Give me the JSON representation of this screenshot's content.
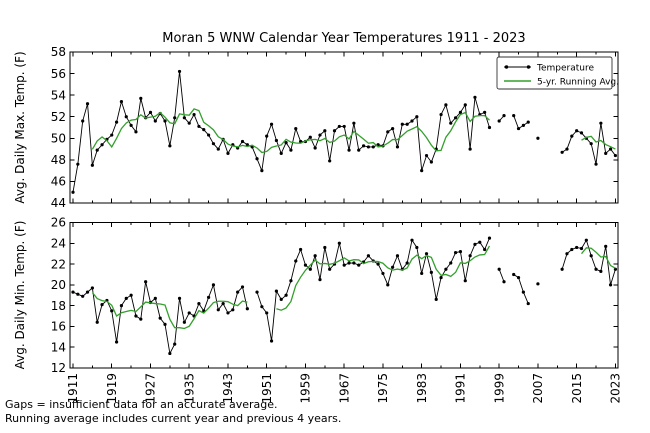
{
  "chart_data": {
    "type": "line",
    "title": "Moran 5 WNW Calendar Year Temperatures 1911 - 2023",
    "x": {
      "start_year": 1911,
      "end_year": 2023,
      "tick_step": 8,
      "minor_tick_step": 4,
      "tick_labels": [
        "1911",
        "1919",
        "1927",
        "1935",
        "1943",
        "1951",
        "1959",
        "1967",
        "1975",
        "1983",
        "1991",
        "1999",
        "2007",
        "2015",
        "2023"
      ]
    },
    "legend": [
      {
        "label": "Temperature",
        "color": "#000000",
        "marker": true
      },
      {
        "label": "5-yr. Running Avg.",
        "color": "#33a02c",
        "marker": false
      }
    ],
    "running_avg_window": 5,
    "grid": false,
    "legend_position": "upper right",
    "panels": [
      {
        "name": "max",
        "ylabel": "Avg. Daily Max. Temp. (F)",
        "ylim": [
          44,
          58
        ],
        "ytick_step": 2,
        "values": [
          45.0,
          47.6,
          51.6,
          53.2,
          47.5,
          48.9,
          49.4,
          49.9,
          50.3,
          51.5,
          53.4,
          52.0,
          51.2,
          50.6,
          53.7,
          51.9,
          52.4,
          51.6,
          52.3,
          51.6,
          49.3,
          51.9,
          56.2,
          51.9,
          51.4,
          52.2,
          51.1,
          50.8,
          50.3,
          49.5,
          49.0,
          49.9,
          48.6,
          49.4,
          49.1,
          49.7,
          49.4,
          49.2,
          48.1,
          47.0,
          50.2,
          51.3,
          49.8,
          48.6,
          49.6,
          48.9,
          50.9,
          49.7,
          49.7,
          50.1,
          49.1,
          50.3,
          50.7,
          47.9,
          50.7,
          51.1,
          51.1,
          48.9,
          51.4,
          48.9,
          49.3,
          49.2,
          49.2,
          49.4,
          49.3,
          50.6,
          50.9,
          49.2,
          51.3,
          51.3,
          51.6,
          52.0,
          47.0,
          48.4,
          47.8,
          49.0,
          52.2,
          53.1,
          51.4,
          51.9,
          52.4,
          53.1,
          49.0,
          53.8,
          52.2,
          52.4,
          51.0,
          null,
          51.6,
          52.1,
          null,
          52.1,
          50.9,
          51.2,
          51.5,
          null,
          50.0,
          null,
          null,
          null,
          null,
          48.7,
          49.0,
          50.2,
          50.7,
          50.5,
          50.0,
          49.5,
          47.6,
          51.4,
          48.6,
          49.0,
          48.4
        ]
      },
      {
        "name": "min",
        "ylabel": "Avg. Daily Min. Temp. (F)",
        "ylim": [
          12,
          26
        ],
        "ytick_step": 2,
        "values": [
          19.3,
          19.1,
          18.9,
          19.3,
          19.7,
          16.4,
          18.1,
          18.5,
          17.5,
          14.5,
          18.0,
          18.7,
          19.0,
          17.0,
          16.7,
          20.3,
          18.3,
          18.7,
          16.8,
          16.2,
          13.4,
          14.3,
          18.7,
          16.4,
          17.3,
          17.0,
          18.2,
          17.5,
          18.8,
          20.0,
          17.6,
          18.2,
          17.3,
          17.6,
          19.3,
          19.8,
          17.7,
          null,
          19.3,
          17.9,
          17.3,
          14.6,
          19.4,
          18.6,
          19.0,
          20.4,
          22.3,
          23.4,
          21.9,
          21.5,
          22.8,
          20.5,
          23.6,
          21.5,
          22.0,
          24.0,
          21.9,
          22.1,
          22.1,
          21.9,
          22.2,
          22.8,
          22.3,
          22.0,
          21.1,
          20.0,
          21.7,
          22.8,
          21.5,
          22.1,
          24.3,
          23.6,
          21.1,
          23.0,
          21.2,
          18.6,
          20.7,
          21.5,
          22.1,
          23.1,
          23.2,
          20.4,
          22.8,
          23.9,
          24.1,
          23.4,
          24.5,
          null,
          21.5,
          20.3,
          null,
          21.0,
          20.7,
          19.3,
          18.2,
          null,
          20.1,
          null,
          null,
          null,
          null,
          21.5,
          23.0,
          23.4,
          23.6,
          23.5,
          24.3,
          22.8,
          21.5,
          21.3,
          23.7,
          20.0,
          21.5
        ]
      }
    ]
  },
  "footer": {
    "line1": "Gaps = insufficient data for an accurate average.",
    "line2": "Running average includes current year and previous 4 years."
  }
}
